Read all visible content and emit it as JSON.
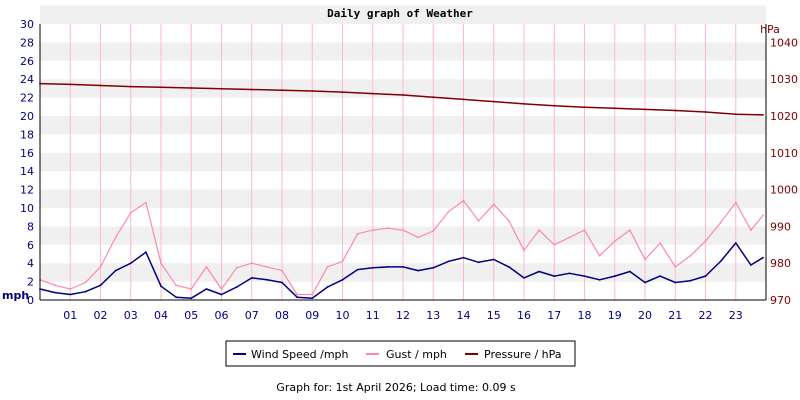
{
  "chart_data": {
    "type": "line",
    "title": "Daily graph of Weather",
    "left_axis": {
      "unit": "mph",
      "ylim": [
        0,
        30
      ],
      "ticks": [
        "0",
        "2",
        "4",
        "6",
        "8",
        "10",
        "12",
        "14",
        "16",
        "18",
        "20",
        "22",
        "24",
        "26",
        "28",
        "30"
      ]
    },
    "right_axis": {
      "unit": "hPa",
      "ylim": [
        970,
        1045
      ],
      "ticks": [
        "970",
        "980",
        "990",
        "1000",
        "1010",
        "1020",
        "1030",
        "1040"
      ]
    },
    "x_axis": {
      "range_hours": [
        0,
        24
      ],
      "tick_labels": [
        "01",
        "02",
        "03",
        "04",
        "05",
        "06",
        "07",
        "08",
        "09",
        "10",
        "11",
        "12",
        "13",
        "14",
        "15",
        "16",
        "17",
        "18",
        "19",
        "20",
        "21",
        "22",
        "23"
      ]
    },
    "grid": true,
    "legend_placement": "bottom-center",
    "series": [
      {
        "name": "Wind Speed /mph",
        "axis": "left",
        "color": "#000080",
        "x": [
          0,
          0.5,
          1,
          1.5,
          2,
          2.5,
          3,
          3.5,
          4,
          4.5,
          5,
          5.5,
          6,
          6.5,
          7,
          7.5,
          8,
          8.5,
          9,
          9.5,
          10,
          10.5,
          11,
          11.5,
          12,
          12.5,
          13,
          13.5,
          14,
          14.5,
          15,
          15.5,
          16,
          16.5,
          17,
          17.5,
          18,
          18.5,
          19,
          19.5,
          20,
          20.5,
          21,
          21.5,
          22,
          22.5,
          23,
          23.5,
          23.9
        ],
        "values": [
          1.2,
          0.8,
          0.6,
          0.9,
          1.6,
          3.2,
          4.0,
          5.2,
          1.5,
          0.3,
          0.2,
          1.2,
          0.6,
          1.4,
          2.4,
          2.2,
          1.9,
          0.3,
          0.2,
          1.4,
          2.2,
          3.3,
          3.5,
          3.6,
          3.6,
          3.2,
          3.5,
          4.2,
          4.6,
          4.1,
          4.4,
          3.6,
          2.4,
          3.1,
          2.6,
          2.9,
          2.6,
          2.2,
          2.6,
          3.1,
          1.9,
          2.6,
          1.9,
          2.1,
          2.6,
          4.2,
          6.2,
          3.8,
          4.6
        ]
      },
      {
        "name": "Gust / mph",
        "axis": "left",
        "color": "#ff88aa",
        "x": [
          0,
          0.5,
          1,
          1.5,
          2,
          2.5,
          3,
          3.5,
          4,
          4.5,
          5,
          5.5,
          6,
          6.5,
          7,
          7.5,
          8,
          8.5,
          9,
          9.5,
          10,
          10.5,
          11,
          11.5,
          12,
          12.5,
          13,
          13.5,
          14,
          14.5,
          15,
          15.5,
          16,
          16.5,
          17,
          17.5,
          18,
          18.5,
          19,
          19.5,
          20,
          20.5,
          21,
          21.5,
          22,
          22.5,
          23,
          23.5,
          23.9
        ],
        "values": [
          2.2,
          1.6,
          1.2,
          1.9,
          3.6,
          6.8,
          9.5,
          10.6,
          4.0,
          1.6,
          1.2,
          3.6,
          1.2,
          3.5,
          4.0,
          3.6,
          3.2,
          0.6,
          0.6,
          3.6,
          4.2,
          7.2,
          7.6,
          7.8,
          7.6,
          6.8,
          7.5,
          9.6,
          10.8,
          8.6,
          10.4,
          8.6,
          5.4,
          7.6,
          6.0,
          6.8,
          7.6,
          4.8,
          6.4,
          7.6,
          4.4,
          6.2,
          3.6,
          4.8,
          6.4,
          8.4,
          10.6,
          7.6,
          9.2
        ]
      },
      {
        "name": "Pressure / hPa",
        "axis": "right",
        "color": "#800000",
        "x": [
          0,
          1,
          2,
          3,
          4,
          5,
          6,
          7,
          8,
          9,
          10,
          11,
          12,
          13,
          14,
          15,
          16,
          17,
          18,
          19,
          20,
          21,
          22,
          23,
          23.9
        ],
        "values": [
          1028.8,
          1028.6,
          1028.3,
          1028.0,
          1027.8,
          1027.6,
          1027.4,
          1027.2,
          1027.0,
          1026.8,
          1026.5,
          1026.1,
          1025.7,
          1025.1,
          1024.5,
          1023.9,
          1023.3,
          1022.8,
          1022.4,
          1022.1,
          1021.8,
          1021.5,
          1021.1,
          1020.5,
          1020.3
        ]
      }
    ]
  },
  "footer": {
    "text": "Graph for: 1st April 2026; Load time: 0.09 s"
  },
  "colors": {
    "background": "#ffffff",
    "band": "#f0f0f0",
    "grid": "#ffb8c8",
    "left_axis_text": "#000080",
    "right_axis_text": "#800000"
  }
}
